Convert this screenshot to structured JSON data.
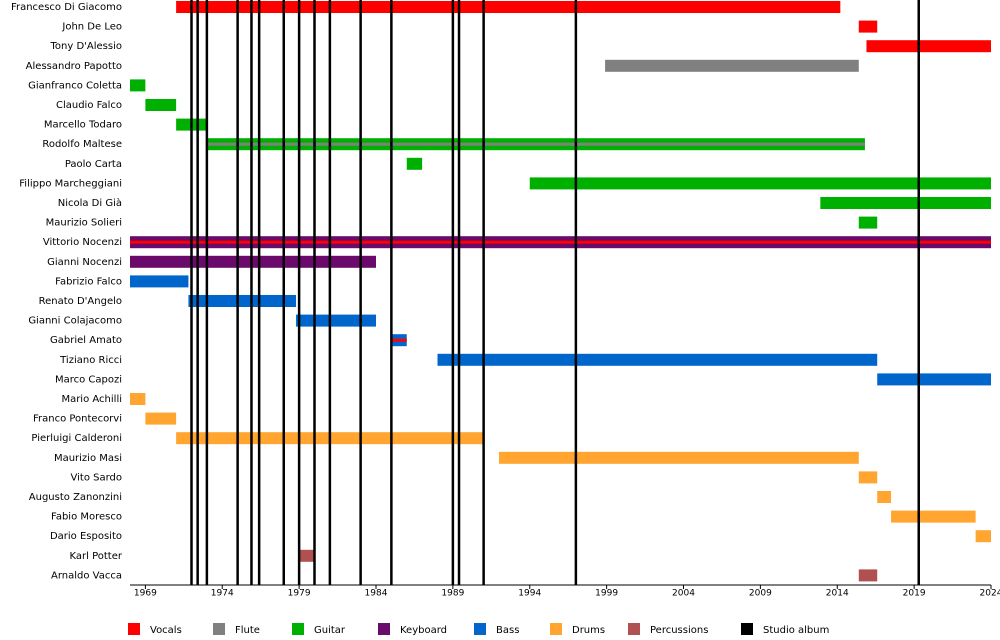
{
  "chart_data": {
    "type": "timeline",
    "xlim": [
      1968,
      2024
    ],
    "xticks": [
      1969,
      1974,
      1979,
      1984,
      1989,
      1994,
      1999,
      2004,
      2009,
      2014,
      2019,
      2024
    ],
    "roles": [
      {
        "name": "Vocals",
        "color": "#ff0000"
      },
      {
        "name": "Flute",
        "color": "#808080"
      },
      {
        "name": "Guitar",
        "color": "#00b000"
      },
      {
        "name": "Keyboard",
        "color": "#6a0a6a"
      },
      {
        "name": "Bass",
        "color": "#0066cc"
      },
      {
        "name": "Drums",
        "color": "#ffa530"
      },
      {
        "name": "Percussions",
        "color": "#b05050"
      }
    ],
    "albums": {
      "name": "Studio album",
      "color": "#000000",
      "years": [
        1972,
        1972.4,
        1973,
        1975,
        1975.9,
        1976.4,
        1978,
        1979,
        1980,
        1981,
        1983,
        1985,
        1989,
        1989.4,
        1991,
        1997,
        2019.3
      ]
    },
    "members": [
      {
        "name": "Francesco Di Giacomo",
        "spans": [
          {
            "start": 1971,
            "end": 2014.2,
            "role": "Vocals"
          }
        ]
      },
      {
        "name": "John De Leo",
        "spans": [
          {
            "start": 2015.4,
            "end": 2016.6,
            "role": "Vocals"
          }
        ]
      },
      {
        "name": "Tony D'Alessio",
        "spans": [
          {
            "start": 2015.9,
            "end": 2024,
            "role": "Vocals"
          }
        ]
      },
      {
        "name": "Alessandro Papotto",
        "spans": [
          {
            "start": 1998.9,
            "end": 2015.4,
            "role": "Flute"
          }
        ]
      },
      {
        "name": "Gianfranco Coletta",
        "spans": [
          {
            "start": 1968,
            "end": 1969,
            "role": "Guitar"
          }
        ]
      },
      {
        "name": "Claudio Falco",
        "spans": [
          {
            "start": 1969,
            "end": 1971,
            "role": "Guitar"
          }
        ]
      },
      {
        "name": "Marcello Todaro",
        "spans": [
          {
            "start": 1971,
            "end": 1973,
            "role": "Guitar"
          }
        ]
      },
      {
        "name": "Rodolfo Maltese",
        "spans": [
          {
            "start": 1973,
            "end": 2015.8,
            "role": "Guitar",
            "stripe": "Flute"
          }
        ]
      },
      {
        "name": "Paolo Carta",
        "spans": [
          {
            "start": 1986,
            "end": 1987,
            "role": "Guitar"
          }
        ]
      },
      {
        "name": "Filippo Marcheggiani",
        "spans": [
          {
            "start": 1994,
            "end": 2024,
            "role": "Guitar"
          }
        ]
      },
      {
        "name": "Nicola Di Già",
        "spans": [
          {
            "start": 2012.9,
            "end": 2024,
            "role": "Guitar"
          }
        ]
      },
      {
        "name": "Maurizio Solieri",
        "spans": [
          {
            "start": 2015.4,
            "end": 2016.6,
            "role": "Guitar"
          }
        ]
      },
      {
        "name": "Vittorio Nocenzi",
        "spans": [
          {
            "start": 1968,
            "end": 2024,
            "role": "Keyboard",
            "stripe": "Vocals"
          }
        ]
      },
      {
        "name": "Gianni Nocenzi",
        "spans": [
          {
            "start": 1968,
            "end": 1984,
            "role": "Keyboard"
          }
        ]
      },
      {
        "name": "Fabrizio Falco",
        "spans": [
          {
            "start": 1968,
            "end": 1971.8,
            "role": "Bass"
          }
        ]
      },
      {
        "name": "Renato D'Angelo",
        "spans": [
          {
            "start": 1971.8,
            "end": 1978.8,
            "role": "Bass"
          }
        ]
      },
      {
        "name": "Gianni Colajacomo",
        "spans": [
          {
            "start": 1978.8,
            "end": 1984,
            "role": "Bass"
          }
        ]
      },
      {
        "name": "Gabriel Amato",
        "spans": [
          {
            "start": 1985,
            "end": 1986,
            "role": "Bass",
            "stripe": "Vocals"
          }
        ]
      },
      {
        "name": "Tiziano Ricci",
        "spans": [
          {
            "start": 1988,
            "end": 2016.6,
            "role": "Bass"
          }
        ]
      },
      {
        "name": "Marco Capozi",
        "spans": [
          {
            "start": 2016.6,
            "end": 2024,
            "role": "Bass"
          }
        ]
      },
      {
        "name": "Mario Achilli",
        "spans": [
          {
            "start": 1968,
            "end": 1969,
            "role": "Drums"
          }
        ]
      },
      {
        "name": "Franco Pontecorvi",
        "spans": [
          {
            "start": 1969,
            "end": 1971,
            "role": "Drums"
          }
        ]
      },
      {
        "name": "Pierluigi Calderoni",
        "spans": [
          {
            "start": 1971,
            "end": 1991,
            "role": "Drums"
          }
        ]
      },
      {
        "name": "Maurizio Masi",
        "spans": [
          {
            "start": 1992,
            "end": 2015.4,
            "role": "Drums"
          }
        ]
      },
      {
        "name": "Vito Sardo",
        "spans": [
          {
            "start": 2015.4,
            "end": 2016.6,
            "role": "Drums"
          }
        ]
      },
      {
        "name": "Augusto Zanonzini",
        "spans": [
          {
            "start": 2016.6,
            "end": 2017.5,
            "role": "Drums"
          }
        ]
      },
      {
        "name": "Fabio Moresco",
        "spans": [
          {
            "start": 2017.5,
            "end": 2023,
            "role": "Drums"
          }
        ]
      },
      {
        "name": "Dario Esposito",
        "spans": [
          {
            "start": 2023,
            "end": 2024,
            "role": "Drums"
          }
        ]
      },
      {
        "name": "Karl Potter",
        "spans": [
          {
            "start": 1979,
            "end": 1980,
            "role": "Percussions"
          }
        ]
      },
      {
        "name": "Arnaldo Vacca",
        "spans": [
          {
            "start": 2015.4,
            "end": 2016.6,
            "role": "Percussions"
          }
        ]
      }
    ]
  }
}
